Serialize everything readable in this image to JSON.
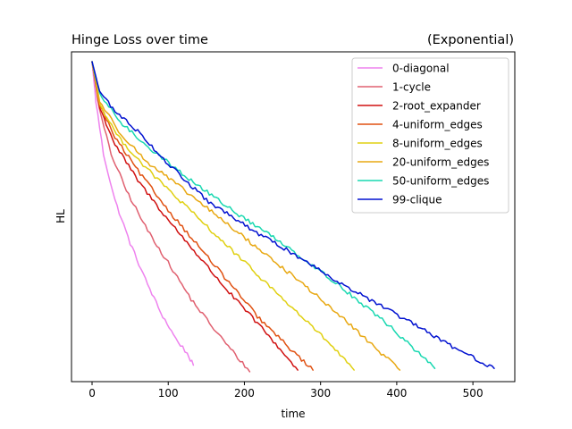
{
  "chart_data": {
    "type": "line",
    "title": "Hinge Loss over time",
    "subtitle": "(Exponential)",
    "xlabel": "time",
    "ylabel": "HL",
    "xlim": [
      -27,
      555
    ],
    "ylim": [
      0,
      1
    ],
    "x_ticks": [
      "0",
      "100",
      "200",
      "300",
      "400",
      "500"
    ],
    "y_ticks_visible": false,
    "grid": false,
    "legend_position": "top-right",
    "start_value": 0.97,
    "series": [
      {
        "name": "0-diagonal",
        "color": "#ee82ee",
        "end_x": 133,
        "end_y": 0.05,
        "points": [
          [
            0,
            0.97
          ],
          [
            5,
            0.85
          ],
          [
            15,
            0.69
          ],
          [
            30,
            0.55
          ],
          [
            50,
            0.42
          ],
          [
            70,
            0.31
          ],
          [
            90,
            0.21
          ],
          [
            110,
            0.13
          ],
          [
            125,
            0.085
          ],
          [
            133,
            0.05
          ]
        ]
      },
      {
        "name": "1-cycle",
        "color": "#e06070",
        "end_x": 207,
        "end_y": 0.03,
        "points": [
          [
            0,
            0.97
          ],
          [
            10,
            0.82
          ],
          [
            25,
            0.69
          ],
          [
            45,
            0.58
          ],
          [
            70,
            0.47
          ],
          [
            100,
            0.36
          ],
          [
            130,
            0.25
          ],
          [
            160,
            0.16
          ],
          [
            185,
            0.09
          ],
          [
            207,
            0.03
          ]
        ]
      },
      {
        "name": "2-root_expander",
        "color": "#d01010",
        "end_x": 270,
        "end_y": 0.035,
        "points": [
          [
            0,
            0.97
          ],
          [
            10,
            0.83
          ],
          [
            30,
            0.72
          ],
          [
            60,
            0.61
          ],
          [
            100,
            0.49
          ],
          [
            140,
            0.38
          ],
          [
            180,
            0.27
          ],
          [
            220,
            0.17
          ],
          [
            250,
            0.09
          ],
          [
            270,
            0.035
          ]
        ]
      },
      {
        "name": "4-uniform_edges",
        "color": "#e05010",
        "end_x": 290,
        "end_y": 0.035,
        "points": [
          [
            0,
            0.97
          ],
          [
            10,
            0.84
          ],
          [
            30,
            0.74
          ],
          [
            60,
            0.64
          ],
          [
            100,
            0.52
          ],
          [
            140,
            0.41
          ],
          [
            180,
            0.3
          ],
          [
            220,
            0.19
          ],
          [
            260,
            0.1
          ],
          [
            290,
            0.035
          ]
        ]
      },
      {
        "name": "8-uniform_edges",
        "color": "#e0d010",
        "end_x": 344,
        "end_y": 0.035,
        "points": [
          [
            0,
            0.97
          ],
          [
            10,
            0.84
          ],
          [
            35,
            0.74
          ],
          [
            70,
            0.65
          ],
          [
            110,
            0.56
          ],
          [
            160,
            0.45
          ],
          [
            210,
            0.34
          ],
          [
            260,
            0.23
          ],
          [
            310,
            0.12
          ],
          [
            344,
            0.035
          ]
        ]
      },
      {
        "name": "20-uniform_edges",
        "color": "#e8a812",
        "end_x": 404,
        "end_y": 0.035,
        "points": [
          [
            0,
            0.97
          ],
          [
            10,
            0.85
          ],
          [
            35,
            0.76
          ],
          [
            70,
            0.67
          ],
          [
            110,
            0.6
          ],
          [
            160,
            0.51
          ],
          [
            220,
            0.4
          ],
          [
            280,
            0.29
          ],
          [
            340,
            0.17
          ],
          [
            404,
            0.035
          ]
        ]
      },
      {
        "name": "50-uniform_edges",
        "color": "#18d8b0",
        "end_x": 450,
        "end_y": 0.04,
        "points": [
          [
            0,
            0.97
          ],
          [
            10,
            0.87
          ],
          [
            40,
            0.78
          ],
          [
            80,
            0.7
          ],
          [
            130,
            0.61
          ],
          [
            190,
            0.51
          ],
          [
            250,
            0.42
          ],
          [
            320,
            0.3
          ],
          [
            390,
            0.17
          ],
          [
            450,
            0.04
          ]
        ]
      },
      {
        "name": "99-clique",
        "color": "#0010d0",
        "end_x": 528,
        "end_y": 0.04,
        "points": [
          [
            0,
            0.97
          ],
          [
            10,
            0.88
          ],
          [
            30,
            0.82
          ],
          [
            60,
            0.76
          ],
          [
            100,
            0.66
          ],
          [
            150,
            0.55
          ],
          [
            210,
            0.46
          ],
          [
            270,
            0.38
          ],
          [
            340,
            0.28
          ],
          [
            410,
            0.19
          ],
          [
            470,
            0.11
          ],
          [
            528,
            0.04
          ]
        ]
      }
    ]
  }
}
